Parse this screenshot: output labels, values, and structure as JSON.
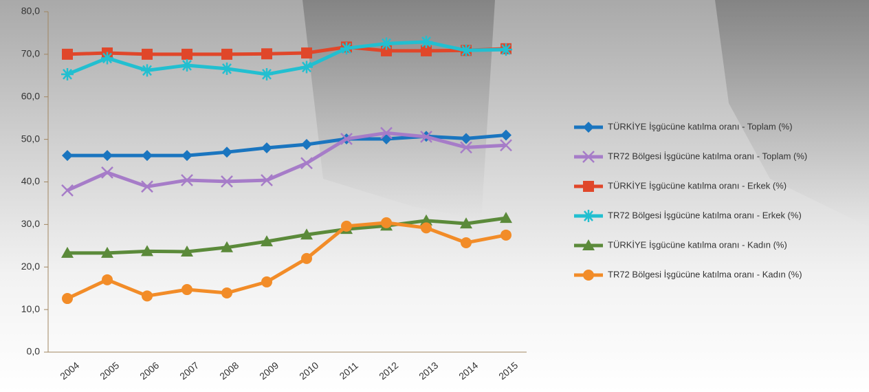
{
  "chart_data": {
    "type": "line",
    "categories": [
      "2004",
      "2005",
      "2006",
      "2007",
      "2008",
      "2009",
      "2010",
      "2011",
      "2012",
      "2013",
      "2014",
      "2015"
    ],
    "series": [
      {
        "name": "TÜRKİYE İşgücüne katılma oranı - Toplam (%)",
        "color": "#1a75bf",
        "marker": "diamond",
        "values": [
          46.2,
          46.2,
          46.2,
          46.2,
          47.0,
          48.0,
          48.8,
          50.1,
          50.1,
          50.7,
          50.2,
          51.0
        ]
      },
      {
        "name": "TR72 Bölgesi İşgücüne katılma oranı - Toplam (%)",
        "color": "#a67cc8",
        "marker": "x",
        "values": [
          38.0,
          42.2,
          38.9,
          40.4,
          40.1,
          40.4,
          44.4,
          50.1,
          51.5,
          50.6,
          48.1,
          48.6
        ]
      },
      {
        "name": "TÜRKİYE İşgücüne katılma oranı - Erkek (%)",
        "color": "#e0472a",
        "marker": "square",
        "values": [
          70.0,
          70.3,
          70.0,
          70.0,
          70.0,
          70.1,
          70.3,
          71.7,
          70.8,
          70.8,
          70.9,
          71.3
        ]
      },
      {
        "name": "TR72 Bölgesi İşgücüne katılma oranı - Erkek (%)",
        "color": "#22bfd0",
        "marker": "star",
        "values": [
          65.3,
          69.1,
          66.2,
          67.4,
          66.6,
          65.3,
          67.0,
          71.4,
          72.5,
          72.9,
          70.9,
          71.1
        ]
      },
      {
        "name": "TÜRKİYE İşgücüne katılma oranı - Kadın (%)",
        "color": "#5b8a3a",
        "marker": "triangle",
        "values": [
          23.3,
          23.3,
          23.7,
          23.6,
          24.6,
          26.0,
          27.6,
          28.9,
          29.7,
          30.9,
          30.2,
          31.5
        ]
      },
      {
        "name": "TR72 Bölgesi İşgücüne katılma oranı - Kadın (%)",
        "color": "#f28c28",
        "marker": "circle",
        "values": [
          12.6,
          17.0,
          13.2,
          14.7,
          13.9,
          16.5,
          22.0,
          29.6,
          30.4,
          29.2,
          25.7,
          27.5
        ]
      }
    ],
    "ylim": [
      0,
      80
    ],
    "yticks": [
      {
        "value": 0,
        "label": "0,0"
      },
      {
        "value": 10,
        "label": "10,0"
      },
      {
        "value": 20,
        "label": "20,0"
      },
      {
        "value": 30,
        "label": "30,0"
      },
      {
        "value": 40,
        "label": "40,0"
      },
      {
        "value": 50,
        "label": "50,0"
      },
      {
        "value": 60,
        "label": "60,0"
      },
      {
        "value": 70,
        "label": "70,0"
      },
      {
        "value": 80,
        "label": "80,0"
      }
    ],
    "legend": "right"
  }
}
